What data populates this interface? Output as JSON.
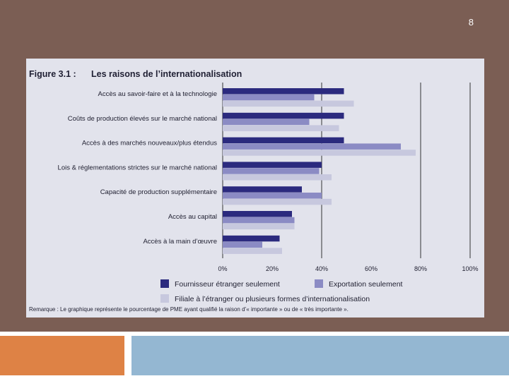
{
  "slide": {
    "page_number": "8",
    "colors": {
      "background": "#7b5e54",
      "accent_orange": "#de8245",
      "accent_blue": "#94b7d2"
    }
  },
  "chart_data": {
    "type": "bar",
    "orientation": "horizontal",
    "figure_label": "Figure 3.1 :",
    "title": "Les raisons de l’internationalisation",
    "categories": [
      "Accès au savoir-faire et à la technologie",
      "Coûts de production élevés sur le marché national",
      "Accès à des marchés nouveaux/plus étendus",
      "Lois & réglementations strictes sur le marché national",
      "Capacité de production supplémentaire",
      "Accès au capital",
      "Accès à la main d’œuvre"
    ],
    "series": [
      {
        "name": "Fournisseur étranger seulement",
        "color": "#2b2a7e",
        "values": [
          49,
          49,
          49,
          40,
          32,
          28,
          23
        ]
      },
      {
        "name": "Exportation seulement",
        "color": "#8b8bc4",
        "values": [
          37,
          35,
          72,
          39,
          40,
          29,
          16
        ]
      },
      {
        "name": "Filiale à l’étranger ou plusieurs formes d’internationalisation",
        "color": "#c7c8de",
        "values": [
          53,
          47,
          78,
          44,
          44,
          29,
          24
        ]
      }
    ],
    "xlim": [
      0,
      100
    ],
    "xticks": [
      "0%",
      "20%",
      "40%",
      "60%",
      "80%",
      "100%"
    ],
    "gridlines_at": [
      40,
      80,
      100
    ],
    "note": "Remarque : Le graphique représente le pourcentage de PME ayant qualifié la raison d’« importante » ou de « très importante »."
  }
}
